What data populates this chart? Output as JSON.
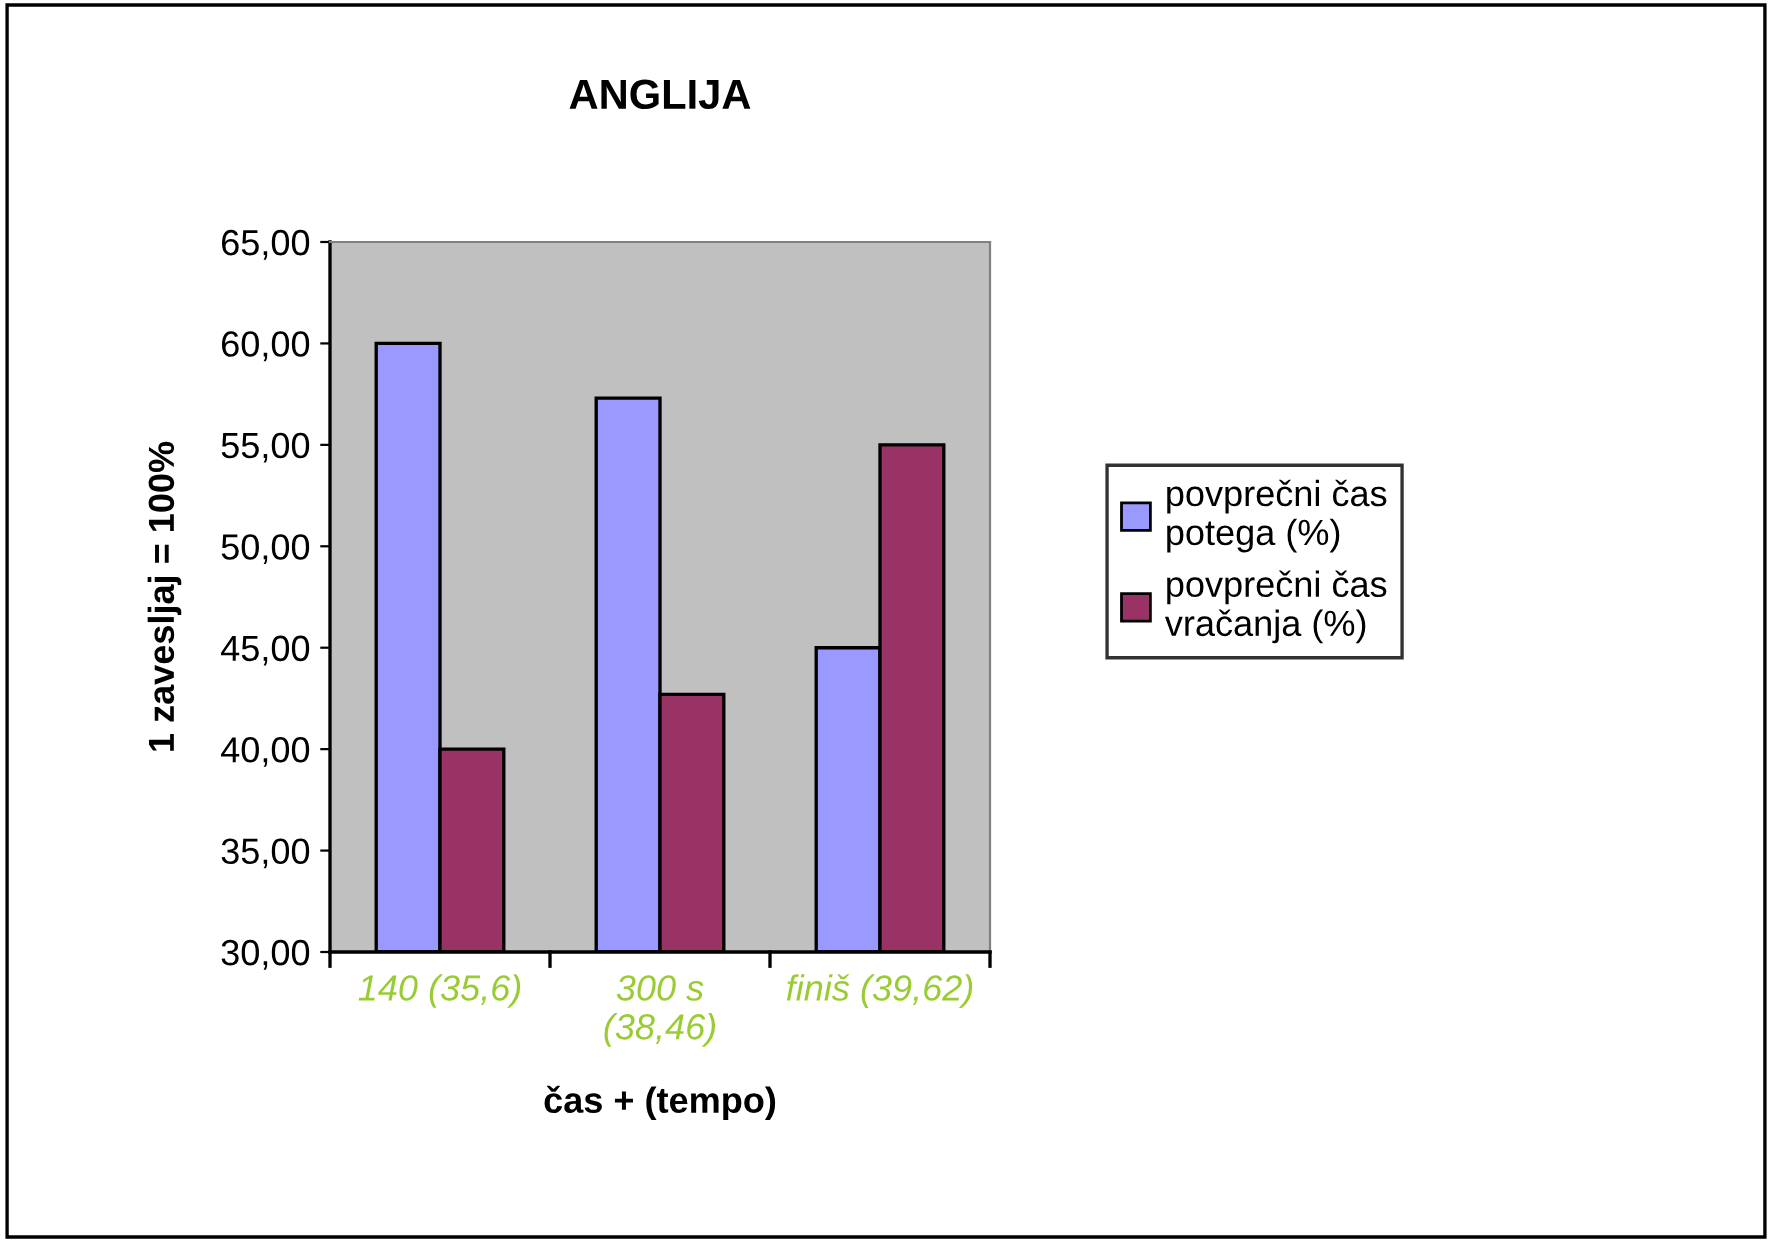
{
  "chart_data": {
    "type": "bar",
    "title": "ANGLIJA",
    "xlabel": "čas + (tempo)",
    "ylabel": "1 zavesljaj = 100%",
    "categories": [
      "140 (35,6)",
      "300 s\n(38,46)",
      "finiš (39,62)"
    ],
    "series": [
      {
        "name": "povprečni čas\npotega (%)",
        "color": "#9999ff",
        "values": [
          60,
          57.3,
          45
        ]
      },
      {
        "name": "povprečni čas\nvračanja (%)",
        "color": "#993366",
        "values": [
          40,
          42.7,
          55
        ]
      }
    ],
    "ylim": [
      30,
      65
    ],
    "yticks": [
      {
        "value": 30,
        "label": "30,00"
      },
      {
        "value": 35,
        "label": "35,00"
      },
      {
        "value": 40,
        "label": "40,00"
      },
      {
        "value": 45,
        "label": "45,00"
      },
      {
        "value": 50,
        "label": "50,00"
      },
      {
        "value": 55,
        "label": "55,00"
      },
      {
        "value": 60,
        "label": "60,00"
      },
      {
        "value": 65,
        "label": "65,00"
      }
    ],
    "grid": false,
    "legend": "right"
  }
}
